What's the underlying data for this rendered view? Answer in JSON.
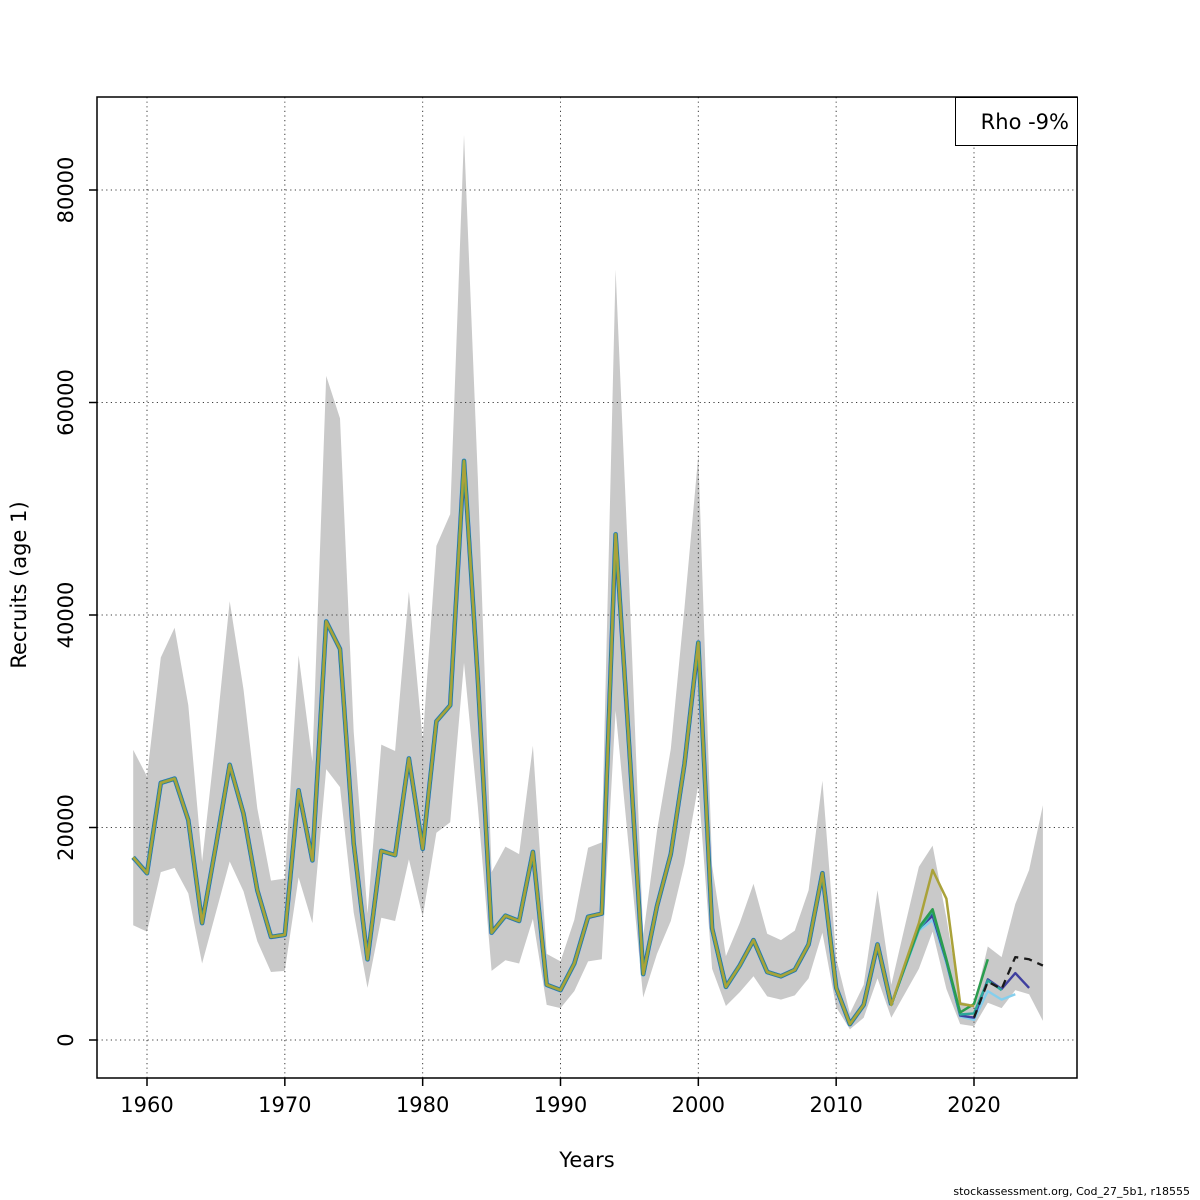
{
  "legend": {
    "label": "Rho -9%"
  },
  "footer": {
    "credit": "stockassessment.org, Cod_27_5b1, r18555"
  },
  "chart_data": {
    "type": "line",
    "title": "",
    "xlabel": "Years",
    "ylabel": "Recruits (age 1)",
    "x_ticks": [
      1960,
      1970,
      1980,
      1990,
      2000,
      2010,
      2020
    ],
    "y_ticks": [
      0,
      20000,
      40000,
      60000,
      80000
    ],
    "xlim": [
      1956.4,
      2027.5
    ],
    "ylim": [
      -3600,
      88700
    ],
    "grid": true,
    "legend_position": "top-right",
    "legend_text": "Rho -9%",
    "band": {
      "name": "confidence-band",
      "color": "#c9c9c9",
      "start_year": 1959,
      "lower": [
        10800,
        10200,
        15800,
        16200,
        13800,
        7200,
        12000,
        16800,
        14000,
        9300,
        6400,
        6500,
        15300,
        11000,
        25500,
        23800,
        12000,
        4900,
        11500,
        11200,
        17000,
        11600,
        19500,
        20500,
        35500,
        22000,
        6500,
        7500,
        7200,
        11400,
        3300,
        3000,
        4600,
        7400,
        7600,
        31000,
        17500,
        4000,
        8100,
        11200,
        16600,
        24000,
        6700,
        3200,
        4500,
        6000,
        4100,
        3800,
        4200,
        5800,
        10100,
        3100,
        1000,
        2100,
        5800,
        2100,
        4400,
        6700,
        10200,
        4800,
        1500,
        1300,
        3500,
        3000,
        4700,
        4300,
        1800
      ],
      "upper": [
        27300,
        24800,
        36000,
        38800,
        31500,
        16800,
        28500,
        41300,
        33000,
        21800,
        15000,
        15200,
        36200,
        26200,
        62500,
        58500,
        29000,
        11900,
        27800,
        27200,
        42200,
        28200,
        46500,
        49500,
        85200,
        53000,
        15800,
        18200,
        17500,
        27700,
        8100,
        7400,
        11300,
        18100,
        18600,
        72500,
        42500,
        9800,
        19700,
        27400,
        40700,
        55000,
        16400,
        7900,
        11000,
        14700,
        10000,
        9400,
        10300,
        14100,
        24400,
        7700,
        2500,
        5200,
        14100,
        5200,
        10800,
        16300,
        18300,
        11500,
        3600,
        3300,
        8800,
        7800,
        12800,
        16000,
        22100
      ]
    },
    "base_start_year": 1959,
    "base_values": [
      17200,
      15700,
      24200,
      24600,
      20700,
      11000,
      18300,
      25900,
      21300,
      14100,
      9700,
      9900,
      23500,
      16900,
      39400,
      36800,
      18500,
      7600,
      17800,
      17400,
      26500,
      18000,
      30000,
      31500,
      54500,
      34000,
      10100,
      11700,
      11200,
      17700,
      5200,
      4700,
      7200,
      11600,
      11900,
      47600,
      27300,
      6200,
      12600,
      17500,
      26000,
      37400,
      10500,
      5000,
      7000,
      9400,
      6400,
      6000,
      6600,
      9000,
      15700,
      4900,
      1500,
      3300,
      9000,
      3300
    ],
    "history_stack": [
      {
        "color": "#85cfed",
        "width": 5.2
      },
      {
        "color": "#3f3f9f",
        "width": 4.4
      },
      {
        "color": "#2aa79b",
        "width": 3.6
      },
      {
        "color": "#2a9d4e",
        "width": 2.9
      }
    ],
    "series": [
      {
        "name": "fit-current-solid",
        "color": "#1a1a1a",
        "width": 2.1,
        "dash": "",
        "include_base": true,
        "tail_start": 2015,
        "end_year": 2020,
        "tail": [
          6900,
          10400,
          11900,
          7400,
          2300,
          2100
        ]
      },
      {
        "name": "retro-peel-2023",
        "color": "#85cfed",
        "width": 2.4,
        "dash": "",
        "include_base": true,
        "tail_start": 2015,
        "end_year": 2023,
        "tail": [
          6800,
          10300,
          11300,
          7200,
          2200,
          1900,
          4600,
          3800,
          4300
        ]
      },
      {
        "name": "retro-peel-2024",
        "color": "#3f3f9f",
        "width": 2.4,
        "dash": "",
        "include_base": true,
        "tail_start": 2015,
        "end_year": 2024,
        "tail": [
          6900,
          10500,
          11700,
          7400,
          2300,
          2100,
          5700,
          4800,
          6300,
          4900
        ]
      },
      {
        "name": "retro-peel-2022",
        "color": "#2aa79b",
        "width": 2.4,
        "dash": "",
        "include_base": true,
        "tail_start": 2015,
        "end_year": 2022,
        "tail": [
          6900,
          10400,
          12100,
          7500,
          2400,
          2500,
          5600,
          4700
        ]
      },
      {
        "name": "retro-peel-2021",
        "color": "#2a9d4e",
        "width": 2.5,
        "dash": "",
        "include_base": true,
        "tail_start": 2015,
        "end_year": 2021,
        "tail": [
          7000,
          10600,
          12300,
          7600,
          2600,
          3400,
          7600
        ]
      },
      {
        "name": "retro-peel-2020",
        "color": "#aaa23a",
        "width": 2.5,
        "dash": "",
        "include_base": true,
        "tail_start": 2015,
        "end_year": 2020,
        "tail": [
          7200,
          11000,
          16000,
          13300,
          3400,
          3200
        ]
      },
      {
        "name": "forecast-dashed",
        "color": "#1a1a1a",
        "width": 2.3,
        "dash": "8 6",
        "include_base": false,
        "tail_start": 2020,
        "end_year": 2025,
        "tail": [
          2100,
          5500,
          4800,
          7800,
          7600,
          7000
        ]
      }
    ]
  }
}
